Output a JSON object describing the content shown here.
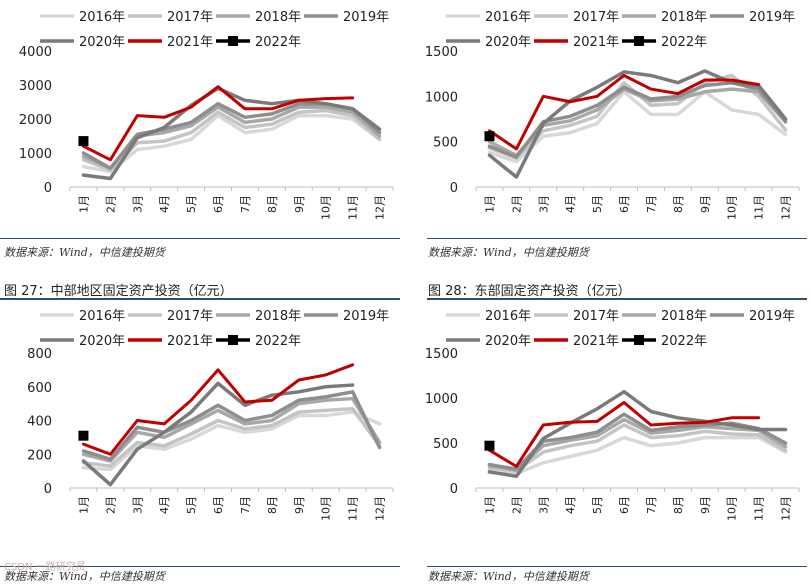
{
  "charts": [
    {
      "source": "数据来源：Wind，中信建投期货",
      "figure_title": "",
      "chart_data": {
        "type": "line",
        "categories": [
          "1月",
          "2月",
          "3月",
          "4月",
          "5月",
          "6月",
          "7月",
          "8月",
          "9月",
          "10月",
          "11月",
          "12月"
        ],
        "ylim": [
          0,
          4000
        ],
        "yticks": [
          0,
          1000,
          2000,
          3000,
          4000
        ],
        "series": [
          {
            "name": "2016年",
            "color": "#d8d8d8",
            "values": [
              600,
              450,
              1100,
              1200,
              1400,
              2100,
              1600,
              1700,
              2100,
              2100,
              2000,
              1400
            ]
          },
          {
            "name": "2017年",
            "color": "#c4c4c4",
            "values": [
              800,
              500,
              1300,
              1350,
              1600,
              2200,
              1750,
              1850,
              2200,
              2250,
              2100,
              1400
            ]
          },
          {
            "name": "2018年",
            "color": "#a8a8a8",
            "values": [
              900,
              550,
              1500,
              1600,
              1800,
              2350,
              1900,
              2000,
              2350,
              2350,
              2200,
              1500
            ]
          },
          {
            "name": "2019年",
            "color": "#8e8e8e",
            "values": [
              1000,
              550,
              1550,
              1700,
              1900,
              2450,
              2050,
              2150,
              2450,
              2450,
              2300,
              1600
            ]
          },
          {
            "name": "2020年",
            "color": "#7a7a7a",
            "values": [
              350,
              250,
              1450,
              1750,
              2400,
              2900,
              2550,
              2450,
              2550,
              2450,
              2300,
              1700
            ]
          },
          {
            "name": "2021年",
            "color": "#c00000",
            "values": [
              1200,
              800,
              2100,
              2050,
              2350,
              2950,
              2300,
              2300,
              2550,
              2600,
              2620,
              null
            ]
          },
          {
            "name": "2022年",
            "color": "#000000",
            "marker": "square",
            "values": [
              1350,
              null,
              null,
              null,
              null,
              null,
              null,
              null,
              null,
              null,
              null,
              null
            ]
          }
        ]
      }
    },
    {
      "source": "数据来源：Wind，中信建投期货",
      "figure_title": "",
      "chart_data": {
        "type": "line",
        "categories": [
          "1月",
          "2月",
          "3月",
          "4月",
          "5月",
          "6月",
          "7月",
          "8月",
          "9月",
          "10月",
          "11月",
          "12月"
        ],
        "ylim": [
          0,
          1500
        ],
        "yticks": [
          0,
          500,
          1000,
          1500
        ],
        "series": [
          {
            "name": "2016年",
            "color": "#d8d8d8",
            "values": [
              380,
              280,
              560,
              600,
              700,
              1050,
              800,
              800,
              1050,
              850,
              800,
              580
            ]
          },
          {
            "name": "2017年",
            "color": "#c4c4c4",
            "values": [
              430,
              320,
              620,
              680,
              780,
              1150,
              900,
              920,
              1150,
              1230,
              1000,
              630
            ]
          },
          {
            "name": "2018年",
            "color": "#a8a8a8",
            "values": [
              500,
              350,
              680,
              730,
              850,
              1080,
              950,
              970,
              1050,
              1080,
              1050,
              720
            ]
          },
          {
            "name": "2019年",
            "color": "#8e8e8e",
            "values": [
              450,
              330,
              720,
              780,
              900,
              1100,
              970,
              1000,
              1120,
              1150,
              1080,
              720
            ]
          },
          {
            "name": "2020年",
            "color": "#7a7a7a",
            "values": [
              350,
              110,
              700,
              950,
              1100,
              1270,
              1230,
              1150,
              1280,
              1150,
              1120,
              750
            ]
          },
          {
            "name": "2021年",
            "color": "#c00000",
            "values": [
              620,
              420,
              1000,
              940,
              1000,
              1230,
              1080,
              1030,
              1180,
              1180,
              1130,
              null
            ]
          },
          {
            "name": "2022年",
            "color": "#000000",
            "marker": "square",
            "values": [
              560,
              null,
              null,
              null,
              null,
              null,
              null,
              null,
              null,
              null,
              null,
              null
            ]
          }
        ]
      }
    },
    {
      "source": "数据来源：Wind，中信建投期货",
      "figure_title": "图 27：中部地区固定资产投资（亿元）",
      "chart_data": {
        "type": "line",
        "categories": [
          "1月",
          "2月",
          "3月",
          "4月",
          "5月",
          "6月",
          "7月",
          "8月",
          "9月",
          "10月",
          "11月",
          "12月"
        ],
        "ylim": [
          0,
          800
        ],
        "yticks": [
          0,
          200,
          400,
          600,
          800
        ],
        "series": [
          {
            "name": "2016年",
            "color": "#d8d8d8",
            "values": [
              120,
              110,
              250,
              230,
              290,
              370,
              330,
              350,
              430,
              430,
              450,
              380
            ]
          },
          {
            "name": "2017年",
            "color": "#c4c4c4",
            "values": [
              150,
              130,
              270,
              250,
              320,
              400,
              350,
              370,
              450,
              460,
              470,
              250
            ]
          },
          {
            "name": "2018年",
            "color": "#a8a8a8",
            "values": [
              200,
              160,
              330,
              300,
              380,
              460,
              380,
              400,
              500,
              520,
              530,
              270
            ]
          },
          {
            "name": "2019年",
            "color": "#8e8e8e",
            "values": [
              220,
              170,
              360,
              330,
              400,
              490,
              400,
              430,
              520,
              540,
              570,
              240
            ]
          },
          {
            "name": "2020年",
            "color": "#7a7a7a",
            "values": [
              160,
              20,
              230,
              330,
              450,
              620,
              490,
              550,
              570,
              600,
              610,
              null
            ]
          },
          {
            "name": "2021年",
            "color": "#c00000",
            "values": [
              260,
              200,
              400,
              380,
              520,
              700,
              510,
              520,
              640,
              670,
              730,
              null
            ]
          },
          {
            "name": "2022年",
            "color": "#000000",
            "marker": "square",
            "values": [
              310,
              null,
              null,
              null,
              null,
              null,
              null,
              null,
              null,
              null,
              null,
              null
            ]
          }
        ]
      }
    },
    {
      "source": "数据来源：Wind，中信建投期货",
      "figure_title": "图 28：东部固定资产投资（亿元）",
      "chart_data": {
        "type": "line",
        "categories": [
          "1月",
          "2月",
          "3月",
          "4月",
          "5月",
          "6月",
          "7月",
          "8月",
          "9月",
          "10月",
          "11月",
          "12月"
        ],
        "ylim": [
          0,
          1500
        ],
        "yticks": [
          0,
          500,
          1000,
          1500
        ],
        "series": [
          {
            "name": "2016年",
            "color": "#d8d8d8",
            "values": [
              170,
              160,
              280,
              350,
              420,
              560,
              470,
              500,
              560,
              560,
              560,
              400
            ]
          },
          {
            "name": "2017年",
            "color": "#c4c4c4",
            "values": [
              220,
              190,
              400,
              470,
              520,
              700,
              560,
              580,
              630,
              600,
              590,
              420
            ]
          },
          {
            "name": "2018年",
            "color": "#a8a8a8",
            "values": [
              250,
              200,
              470,
              530,
              580,
              760,
              610,
              640,
              680,
              660,
              640,
              460
            ]
          },
          {
            "name": "2019年",
            "color": "#8e8e8e",
            "values": [
              260,
              210,
              520,
              560,
              620,
              820,
              640,
              680,
              700,
              720,
              660,
              500
            ]
          },
          {
            "name": "2020年",
            "color": "#7a7a7a",
            "values": [
              180,
              130,
              550,
              720,
              880,
              1070,
              850,
              780,
              740,
              700,
              650,
              650
            ]
          },
          {
            "name": "2021年",
            "color": "#c00000",
            "values": [
              420,
              240,
              700,
              730,
              740,
              950,
              700,
              720,
              730,
              780,
              780,
              null
            ]
          },
          {
            "name": "2022年",
            "color": "#000000",
            "marker": "square",
            "values": [
              470,
              null,
              null,
              null,
              null,
              null,
              null,
              null,
              null,
              null,
              null,
              null
            ]
          }
        ]
      }
    }
  ],
  "watermark": "CSDN 一路研究员"
}
